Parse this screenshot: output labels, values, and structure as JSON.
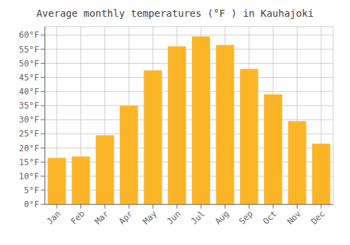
{
  "chart_data": {
    "type": "bar",
    "title": "Average monthly temperatures (°F ) in Kauhajoki",
    "categories": [
      "Jan",
      "Feb",
      "Mar",
      "Apr",
      "May",
      "Jun",
      "Jul",
      "Aug",
      "Sep",
      "Oct",
      "Nov",
      "Dec"
    ],
    "values": [
      16.5,
      17.0,
      24.5,
      35.0,
      47.5,
      56.0,
      59.5,
      56.5,
      48.0,
      39.0,
      29.5,
      21.5
    ],
    "color": "#FDB528",
    "ylim": [
      0,
      63
    ],
    "yticks": [
      {
        "value": 0,
        "label": "0°F"
      },
      {
        "value": 5,
        "label": "5°F"
      },
      {
        "value": 10,
        "label": "10°F"
      },
      {
        "value": 15,
        "label": "15°F"
      },
      {
        "value": 20,
        "label": "20°F"
      },
      {
        "value": 25,
        "label": "25°F"
      },
      {
        "value": 30,
        "label": "30°F"
      },
      {
        "value": 35,
        "label": "35°F"
      },
      {
        "value": 40,
        "label": "40°F"
      },
      {
        "value": 45,
        "label": "45°F"
      },
      {
        "value": 50,
        "label": "50°F"
      },
      {
        "value": 55,
        "label": "55°F"
      },
      {
        "value": 60,
        "label": "60°F"
      }
    ],
    "grid": true
  }
}
